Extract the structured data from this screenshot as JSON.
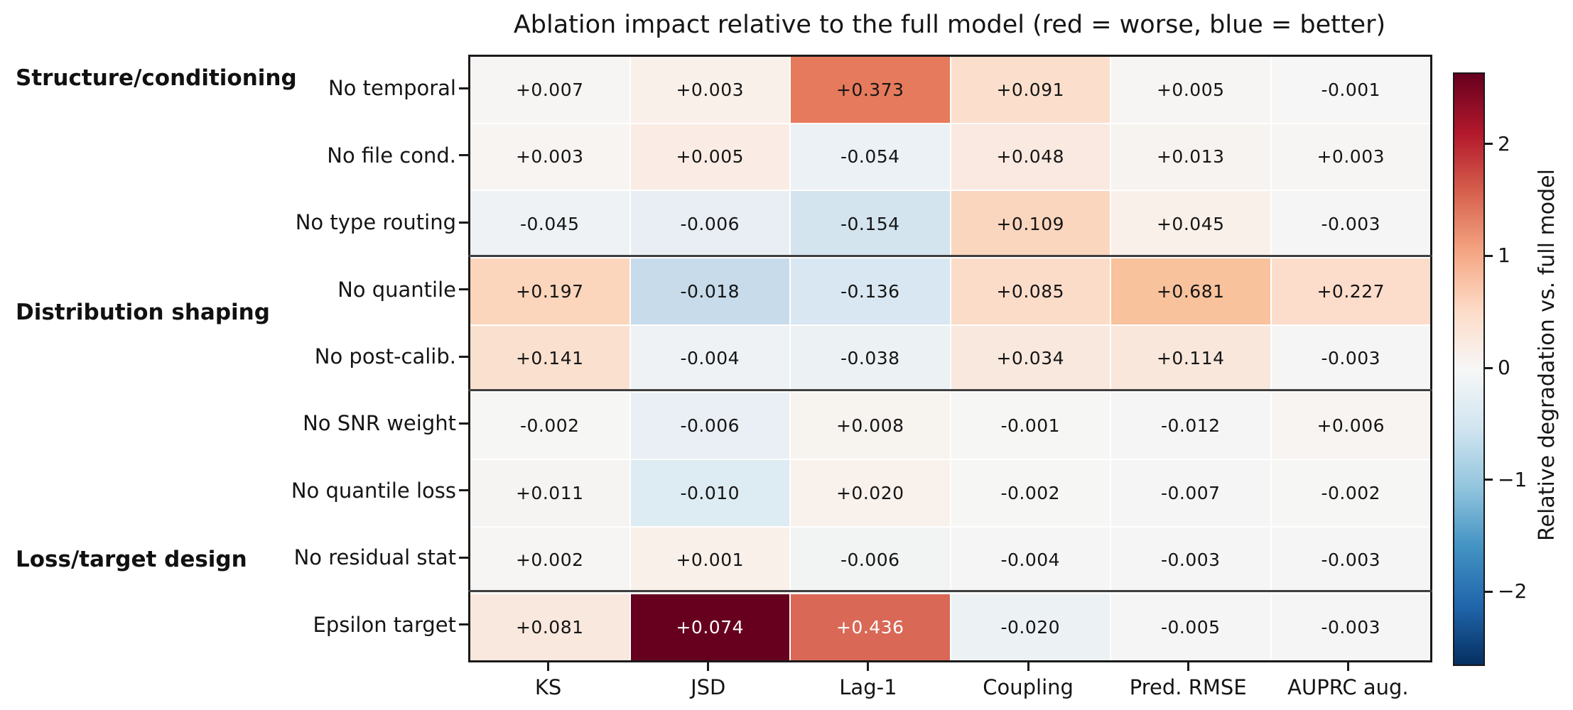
{
  "title": "Ablation impact relative to the full model (red = worse, blue = better)",
  "chart_data": {
    "type": "heatmap",
    "title": "Ablation impact relative to the full model (red = worse, blue = better)",
    "columns": [
      "KS",
      "JSD",
      "Lag-1",
      "Coupling",
      "Pred. RMSE",
      "AUPRC aug."
    ],
    "groups": [
      {
        "label": "Structure/conditioning"
      },
      {
        "label": "Distribution shaping"
      },
      {
        "label": "Loss/target design"
      }
    ],
    "rows": [
      {
        "label": "No temporal",
        "values": [
          0.007,
          0.003,
          0.373,
          0.091,
          0.005,
          -0.001
        ],
        "display": [
          "+0.007",
          "+0.003",
          "+0.373",
          "+0.091",
          "+0.005",
          "-0.001"
        ],
        "colors": [
          "#f7f5f4",
          "#faf0ea",
          "#e67a5c",
          "#fbdfcc",
          "#f7f5f3",
          "#f6f6f6"
        ]
      },
      {
        "label": "No file cond.",
        "values": [
          0.003,
          0.005,
          -0.054,
          0.048,
          0.013,
          0.003
        ],
        "display": [
          "+0.003",
          "+0.005",
          "-0.054",
          "+0.048",
          "+0.013",
          "+0.003"
        ],
        "colors": [
          "#f7f4f2",
          "#faece4",
          "#ebf1f4",
          "#fae9e0",
          "#f7f3f0",
          "#f7f5f3"
        ]
      },
      {
        "label": "No type routing",
        "values": [
          -0.045,
          -0.006,
          -0.154,
          0.109,
          0.045,
          -0.003
        ],
        "display": [
          "-0.045",
          "-0.006",
          "-0.154",
          "+0.109",
          "+0.045",
          "-0.003"
        ],
        "colors": [
          "#eef2f5",
          "#e8eef3",
          "#d3e4ef",
          "#fbd6bf",
          "#f9f0e9",
          "#f5f5f5"
        ]
      },
      {
        "label": "No quantile",
        "values": [
          0.197,
          -0.018,
          -0.136,
          0.085,
          0.681,
          0.227
        ],
        "display": [
          "+0.197",
          "-0.018",
          "-0.136",
          "+0.085",
          "+0.681",
          "+0.227"
        ],
        "colors": [
          "#fbd5bc",
          "#c7dbea",
          "#d8e7f1",
          "#fbdcc9",
          "#f8c29c",
          "#fcdccb"
        ]
      },
      {
        "label": "No post-calib.",
        "values": [
          0.141,
          -0.004,
          -0.038,
          0.034,
          0.114,
          -0.003
        ],
        "display": [
          "+0.141",
          "-0.004",
          "-0.038",
          "+0.034",
          "+0.114",
          "-0.003"
        ],
        "colors": [
          "#fae0cf",
          "#eef2f4",
          "#ecf1f3",
          "#f9e8de",
          "#f9e7dc",
          "#f6f5f5"
        ]
      },
      {
        "label": "No SNR weight",
        "values": [
          -0.002,
          -0.006,
          0.008,
          -0.001,
          -0.012,
          0.006
        ],
        "display": [
          "-0.002",
          "-0.006",
          "+0.008",
          "-0.001",
          "-0.012",
          "+0.006"
        ],
        "colors": [
          "#f6f6f5",
          "#e9eff4",
          "#f7f4f0",
          "#f6f6f5",
          "#f5f5f5",
          "#f7f4f1"
        ]
      },
      {
        "label": "No quantile loss",
        "values": [
          0.011,
          -0.01,
          0.02,
          -0.002,
          -0.007,
          -0.002
        ],
        "display": [
          "+0.011",
          "-0.010",
          "+0.020",
          "-0.002",
          "-0.007",
          "-0.002"
        ],
        "colors": [
          "#f6f4f3",
          "#ddebf2",
          "#f8f1ec",
          "#f6f6f5",
          "#f5f5f5",
          "#f6f6f5"
        ]
      },
      {
        "label": "No residual stat",
        "values": [
          0.002,
          0.001,
          -0.006,
          -0.004,
          -0.003,
          -0.003
        ],
        "display": [
          "+0.002",
          "+0.001",
          "-0.006",
          "-0.004",
          "-0.003",
          "-0.003"
        ],
        "colors": [
          "#f6f5f4",
          "#f9f0e9",
          "#f2f4f4",
          "#f5f5f5",
          "#f5f5f5",
          "#f5f5f5"
        ]
      },
      {
        "label": "Epsilon target",
        "values": [
          0.081,
          0.074,
          0.436,
          -0.02,
          -0.005,
          -0.003
        ],
        "display": [
          "+0.081",
          "+0.074",
          "+0.436",
          "-0.020",
          "-0.005",
          "-0.003"
        ],
        "colors": [
          "#f9e8dd",
          "#67001f",
          "#d96856",
          "#ecf1f4",
          "#f5f5f5",
          "#f5f5f5"
        ]
      }
    ],
    "separators_after_rows": [
      3,
      5,
      8
    ],
    "colorbar": {
      "label": "Relative degradation vs. full model",
      "tick_labels": [
        "2",
        "1",
        "0",
        "−1",
        "−2"
      ],
      "tick_values": [
        2,
        1,
        0,
        -1,
        -2
      ],
      "vmin": -2.64,
      "vmax": 2.64,
      "colormap_bottom_to_top": [
        "#053061",
        "#2166ac",
        "#4393c3",
        "#92c5de",
        "#d1e5f0",
        "#f7f7f7",
        "#fddbc7",
        "#f4a582",
        "#d6604d",
        "#b2182b",
        "#67001f"
      ]
    },
    "grid": false,
    "legend_position": "right-colorbar"
  }
}
